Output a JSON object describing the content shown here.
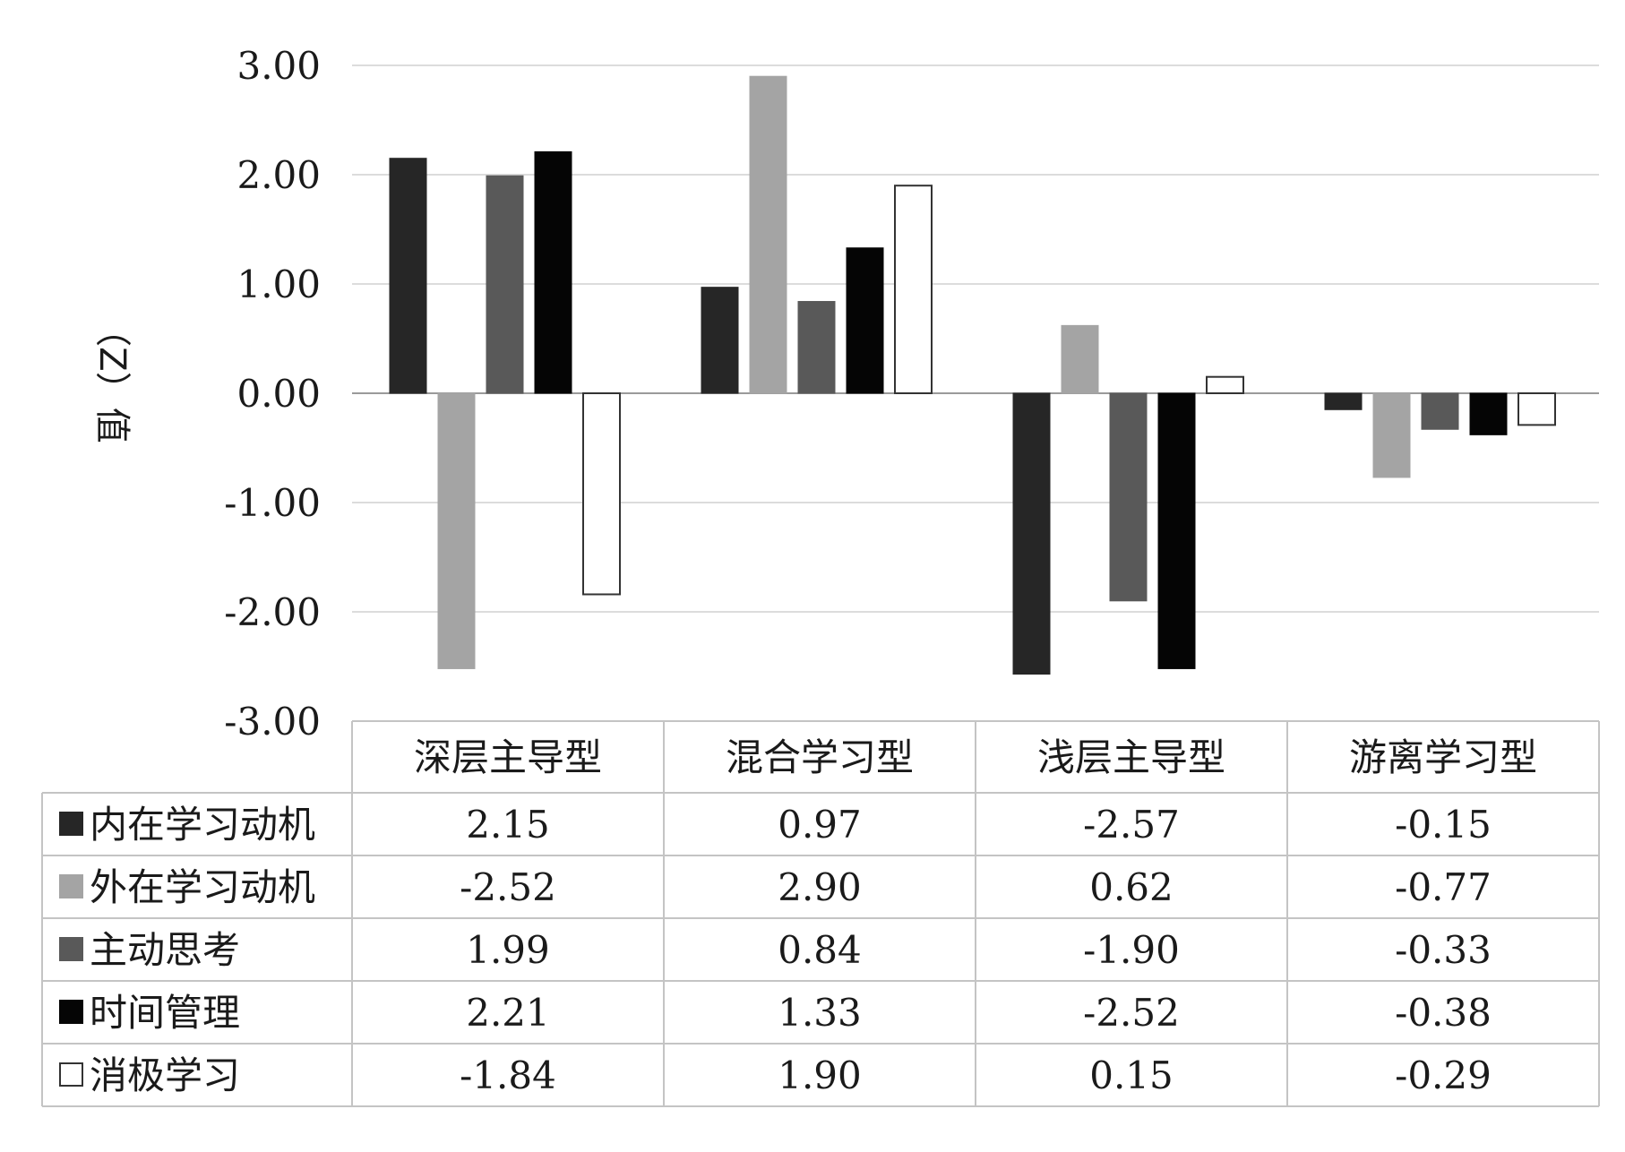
{
  "chart_data": {
    "type": "bar",
    "ylabel": "（Z）值",
    "ylim": [
      -3,
      3
    ],
    "yticks": [
      "3.00",
      "2.00",
      "1.00",
      "0.00",
      "-1.00",
      "-2.00",
      "-3.00"
    ],
    "ytick_values": [
      3,
      2,
      1,
      0,
      -1,
      -2,
      -3
    ],
    "grid": true,
    "legend": "data-table",
    "categories": [
      "深层主导型",
      "混合学习型",
      "浅层主导型",
      "游离学习型"
    ],
    "series": [
      {
        "name": "内在学习动机",
        "color": "#262626",
        "values": [
          2.15,
          0.97,
          -2.57,
          -0.15
        ],
        "labels": [
          "2.15",
          "0.97",
          "-2.57",
          "-0.15"
        ]
      },
      {
        "name": "外在学习动机",
        "color": "#a4a4a4",
        "values": [
          -2.52,
          2.9,
          0.62,
          -0.77
        ],
        "labels": [
          "-2.52",
          "2.90",
          "0.62",
          "-0.77"
        ]
      },
      {
        "name": "主动思考",
        "color": "#595959",
        "values": [
          1.99,
          0.84,
          -1.9,
          -0.33
        ],
        "labels": [
          "1.99",
          "0.84",
          "-1.90",
          "-0.33"
        ]
      },
      {
        "name": "时间管理",
        "color": "#050505",
        "values": [
          2.21,
          1.33,
          -2.52,
          -0.38
        ],
        "labels": [
          "2.21",
          "1.33",
          "-2.52",
          "-0.38"
        ]
      },
      {
        "name": "消极学习",
        "color": "#ffffff",
        "values": [
          -1.84,
          1.9,
          0.15,
          -0.29
        ],
        "labels": [
          "-1.84",
          "1.90",
          "0.15",
          "-0.29"
        ]
      }
    ]
  }
}
